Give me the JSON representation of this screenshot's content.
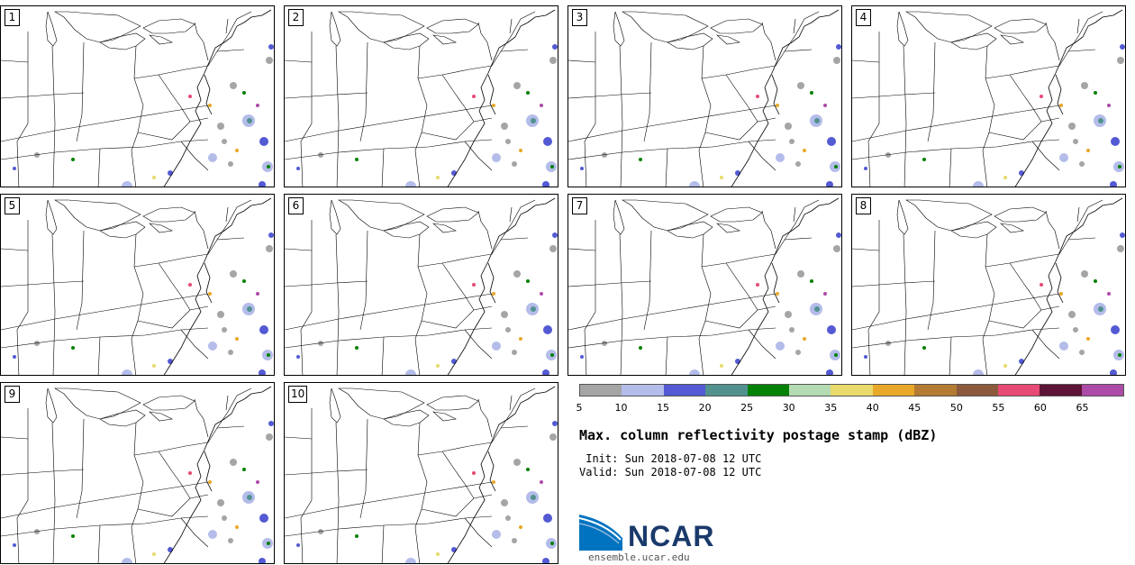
{
  "panels": [
    {
      "label": "1"
    },
    {
      "label": "2"
    },
    {
      "label": "3"
    },
    {
      "label": "4"
    },
    {
      "label": "5"
    },
    {
      "label": "6"
    },
    {
      "label": "7"
    },
    {
      "label": "8"
    },
    {
      "label": "9"
    },
    {
      "label": "10"
    }
  ],
  "colorbar": {
    "ticks": [
      "5",
      "10",
      "15",
      "20",
      "25",
      "30",
      "35",
      "40",
      "45",
      "50",
      "55",
      "60",
      "65"
    ],
    "colors": [
      "#a5a5a5",
      "#b4bcea",
      "#535ad3",
      "#51928f",
      "#038103",
      "#b4dbb2",
      "#e9da6b",
      "#e9a827",
      "#b47b33",
      "#8b5a3c",
      "#e74a74",
      "#5e1436",
      "#ad4ba8"
    ]
  },
  "title": "Max. column reflectivity postage stamp (dBZ)",
  "init": " Init: Sun 2018-07-08 12 UTC",
  "valid": "Valid: Sun 2018-07-08 12 UTC",
  "logo": {
    "name": "NCAR",
    "url": "ensemble.ucar.edu",
    "colors": {
      "blue": "#0073c0",
      "navy": "#1a3a6b"
    }
  }
}
